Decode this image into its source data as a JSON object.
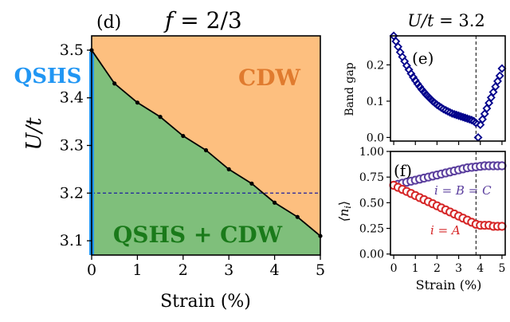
{
  "chart_data": [
    {
      "panel": "(d)",
      "type": "area",
      "title": "f = 2/3",
      "title_parts": {
        "var": "f",
        "eq": " = 2/3"
      },
      "xlabel": "Strain (%)",
      "ylabel": "U/t",
      "xlim": [
        0,
        5
      ],
      "ylim": [
        3.07,
        3.53
      ],
      "xticks": [
        0,
        1,
        2,
        3,
        4,
        5
      ],
      "xtick_labels": [
        "0",
        "1",
        "2",
        "3",
        "4",
        "5"
      ],
      "yticks": [
        3.1,
        3.2,
        3.3,
        3.4,
        3.5
      ],
      "ytick_labels": [
        "3.1",
        "3.2",
        "3.3",
        "3.4",
        "3.5"
      ],
      "boundary": {
        "x": [
          0,
          0.5,
          1,
          1.5,
          2,
          2.5,
          3,
          3.5,
          4,
          4.5,
          5
        ],
        "y": [
          3.5,
          3.43,
          3.39,
          3.36,
          3.32,
          3.29,
          3.25,
          3.22,
          3.18,
          3.15,
          3.11
        ]
      },
      "hline": 3.2,
      "regions": {
        "upper": {
          "label": "CDW",
          "color": "#fdbf7f",
          "text_color": "#e07b2f"
        },
        "lower": {
          "label": "QSHS + CDW",
          "color": "#7fbf7b",
          "text_color": "#1a7a1a"
        },
        "axis_line": {
          "label": "QSHS",
          "color": "#2196f3",
          "text_color": "#2196f3"
        }
      }
    },
    {
      "panel": "(e)",
      "type": "scatter",
      "title": "U/t = 3.2",
      "title_parts": {
        "var": "U/t",
        "eq": " = 3.2"
      },
      "xlabel": "",
      "ylabel": "Band gap",
      "xlim": [
        -0.15,
        5.15
      ],
      "ylim": [
        -0.01,
        0.28
      ],
      "yticks": [
        0.0,
        0.1,
        0.2
      ],
      "ytick_labels": [
        "0.0",
        "0.1",
        "0.2"
      ],
      "xticks": [
        0,
        1,
        2,
        3,
        4,
        5
      ],
      "marker_color": "#00008b",
      "x": [
        0,
        0.1,
        0.2,
        0.3,
        0.4,
        0.5,
        0.6,
        0.7,
        0.8,
        0.9,
        1.0,
        1.1,
        1.2,
        1.3,
        1.4,
        1.5,
        1.6,
        1.7,
        1.8,
        1.9,
        2.0,
        2.1,
        2.2,
        2.3,
        2.4,
        2.5,
        2.6,
        2.7,
        2.8,
        2.9,
        3.0,
        3.1,
        3.2,
        3.3,
        3.4,
        3.5,
        3.6,
        3.7,
        3.8,
        3.9,
        4.0,
        4.1,
        4.2,
        4.3,
        4.4,
        4.5,
        4.6,
        4.7,
        4.8,
        4.9,
        5.0
      ],
      "y": [
        0.28,
        0.265,
        0.25,
        0.235,
        0.222,
        0.21,
        0.198,
        0.187,
        0.176,
        0.166,
        0.157,
        0.148,
        0.14,
        0.132,
        0.125,
        0.118,
        0.112,
        0.106,
        0.1,
        0.095,
        0.09,
        0.086,
        0.082,
        0.078,
        0.075,
        0.072,
        0.069,
        0.066,
        0.064,
        0.062,
        0.06,
        0.058,
        0.056,
        0.054,
        0.052,
        0.05,
        0.048,
        0.045,
        0.04,
        0.0,
        0.035,
        0.05,
        0.065,
        0.08,
        0.095,
        0.11,
        0.125,
        0.14,
        0.155,
        0.17,
        0.19
      ],
      "vline": 3.8
    },
    {
      "panel": "(f)",
      "type": "scatter",
      "xlabel": "Strain (%)",
      "ylabel": "⟨n_i⟩",
      "ylabel_parts": {
        "main": "⟨n",
        "sub": "i",
        "close": "⟩"
      },
      "xlim": [
        -0.15,
        5.15
      ],
      "ylim": [
        -0.01,
        1.0
      ],
      "xticks": [
        0,
        1,
        2,
        3,
        4,
        5
      ],
      "xtick_labels": [
        "0",
        "1",
        "2",
        "3",
        "4",
        "5"
      ],
      "yticks": [
        0.0,
        0.25,
        0.5,
        0.75,
        1.0
      ],
      "ytick_labels": [
        "0.00",
        "0.25",
        "0.50",
        "0.75",
        "1.00"
      ],
      "vline": 3.8,
      "series": [
        {
          "name": "i = B = C",
          "name_parts": {
            "pre": "i",
            "rest": " = ",
            "b": "B",
            "eq2": " = ",
            "c": "C"
          },
          "color": "#5b3f9e",
          "x": [
            0,
            0.2,
            0.4,
            0.6,
            0.8,
            1.0,
            1.2,
            1.4,
            1.6,
            1.8,
            2.0,
            2.2,
            2.4,
            2.6,
            2.8,
            3.0,
            3.2,
            3.4,
            3.6,
            3.8,
            4.0,
            4.2,
            4.4,
            4.6,
            4.8,
            5.0
          ],
          "y": [
            0.67,
            0.68,
            0.69,
            0.7,
            0.71,
            0.72,
            0.73,
            0.74,
            0.75,
            0.76,
            0.77,
            0.78,
            0.79,
            0.8,
            0.81,
            0.82,
            0.83,
            0.84,
            0.845,
            0.85,
            0.855,
            0.86,
            0.86,
            0.86,
            0.86,
            0.86
          ]
        },
        {
          "name": "i = A",
          "name_parts": {
            "pre": "i",
            "rest": " = ",
            "a": "A"
          },
          "color": "#d62728",
          "x": [
            0,
            0.2,
            0.4,
            0.6,
            0.8,
            1.0,
            1.2,
            1.4,
            1.6,
            1.8,
            2.0,
            2.2,
            2.4,
            2.6,
            2.8,
            3.0,
            3.2,
            3.4,
            3.6,
            3.8,
            4.0,
            4.2,
            4.4,
            4.6,
            4.8,
            5.0
          ],
          "y": [
            0.67,
            0.65,
            0.63,
            0.61,
            0.59,
            0.57,
            0.55,
            0.53,
            0.51,
            0.49,
            0.47,
            0.45,
            0.43,
            0.41,
            0.39,
            0.37,
            0.35,
            0.33,
            0.31,
            0.29,
            0.28,
            0.28,
            0.28,
            0.27,
            0.27,
            0.27
          ]
        }
      ]
    }
  ]
}
